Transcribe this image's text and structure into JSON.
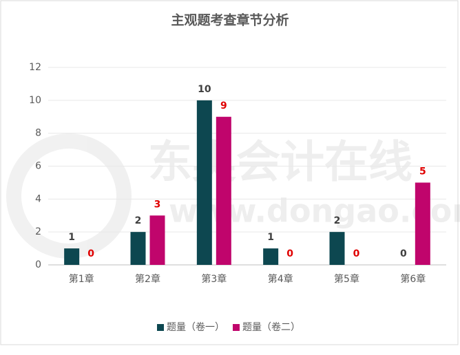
{
  "chart_data": {
    "type": "bar",
    "title": "主观题考查章节分析",
    "categories": [
      "第1章",
      "第2章",
      "第3章",
      "第4章",
      "第5章",
      "第6章"
    ],
    "series": [
      {
        "name": "题量（卷一）",
        "color": "#0d4750",
        "label_color": "#404040",
        "values": [
          1,
          2,
          10,
          1,
          2,
          0
        ]
      },
      {
        "name": "题量（卷二）",
        "color": "#c0056c",
        "label_color": "#e00000",
        "values": [
          0,
          3,
          9,
          0,
          0,
          5
        ]
      }
    ],
    "ylim": [
      0,
      12
    ],
    "yticks": [
      0,
      2,
      4,
      6,
      8,
      10,
      12
    ],
    "grid": true,
    "legend": "bottom",
    "watermark": {
      "text": "东奥会计在线",
      "url": "www.dongao.com"
    }
  }
}
